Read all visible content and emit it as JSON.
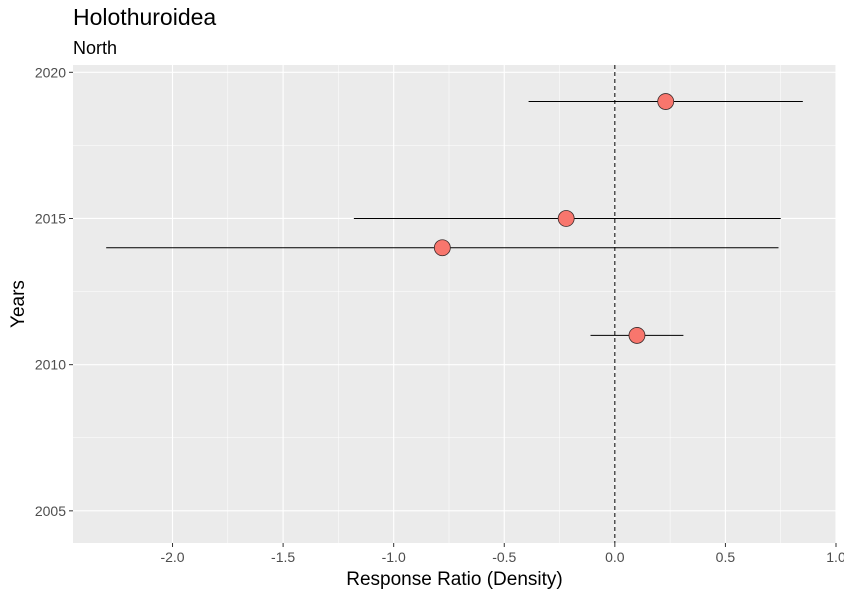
{
  "chart_data": {
    "type": "scatter",
    "title": "Holothuroidea",
    "subtitle": "North",
    "xlabel": "Response Ratio (Density)",
    "ylabel": "Years",
    "xlim": [
      -2.45,
      1.0
    ],
    "ylim": [
      2003.9,
      2020.25
    ],
    "xticks": [
      -2.0,
      -1.5,
      -1.0,
      -0.5,
      0.0,
      0.5,
      1.0
    ],
    "xtick_labels": [
      "-2.0",
      "-1.5",
      "-1.0",
      "-0.5",
      "0.0",
      "0.5",
      "1.0"
    ],
    "yticks": [
      2005,
      2010,
      2015,
      2020
    ],
    "ytick_labels": [
      "2005",
      "2010",
      "2015",
      "2020"
    ],
    "grid": true,
    "reference_line_x": 0.0,
    "point_color": "#F8766D",
    "panel_background": "#EBEBEB",
    "points": [
      {
        "year": 2019,
        "value": 0.23,
        "lower": -0.39,
        "upper": 0.85
      },
      {
        "year": 2015,
        "value": -0.22,
        "lower": -1.18,
        "upper": 0.75
      },
      {
        "year": 2014,
        "value": -0.78,
        "lower": -2.3,
        "upper": 0.74
      },
      {
        "year": 2011,
        "value": 0.1,
        "lower": -0.11,
        "upper": 0.31
      }
    ]
  }
}
